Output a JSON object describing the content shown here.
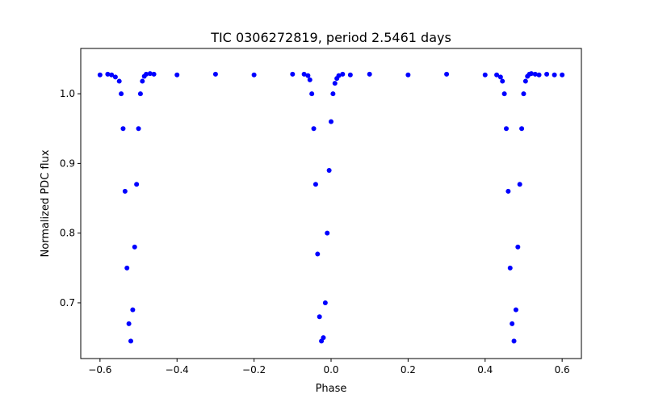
{
  "chart_data": {
    "type": "scatter",
    "title": "TIC 0306272819, period 2.5461 days",
    "xlabel": "Phase",
    "ylabel": "Normalized PDC flux",
    "xlim": [
      -0.65,
      0.65
    ],
    "ylim": [
      0.62,
      1.065
    ],
    "xticks": [
      -0.6,
      -0.4,
      -0.2,
      0.0,
      0.2,
      0.4,
      0.6
    ],
    "xtick_labels": [
      "−0.6",
      "−0.4",
      "−0.2",
      "0.0",
      "0.2",
      "0.4",
      "0.6"
    ],
    "yticks": [
      0.7,
      0.8,
      0.9,
      1.0
    ],
    "ytick_labels": [
      "0.7",
      "0.8",
      "0.9",
      "1.0"
    ],
    "grid": false,
    "legend": "none",
    "series": [
      {
        "color": "#0000ff",
        "marker": "circle",
        "x": [
          -0.6,
          -0.58,
          -0.57,
          -0.56,
          -0.55,
          -0.545,
          -0.54,
          -0.535,
          -0.53,
          -0.525,
          -0.52,
          -0.515,
          -0.51,
          -0.505,
          -0.5,
          -0.495,
          -0.49,
          -0.485,
          -0.48,
          -0.47,
          -0.46,
          -0.4,
          -0.3,
          -0.2,
          -0.1,
          -0.07,
          -0.06,
          -0.055,
          -0.05,
          -0.045,
          -0.04,
          -0.035,
          -0.03,
          -0.025,
          -0.02,
          -0.015,
          -0.01,
          -0.005,
          0.0,
          0.005,
          0.01,
          0.015,
          0.02,
          0.03,
          0.05,
          0.1,
          0.2,
          0.3,
          0.4,
          0.43,
          0.44,
          0.445,
          0.45,
          0.455,
          0.46,
          0.465,
          0.47,
          0.475,
          0.48,
          0.485,
          0.49,
          0.495,
          0.5,
          0.505,
          0.51,
          0.515,
          0.52,
          0.53,
          0.54,
          0.56,
          0.58,
          0.6
        ],
        "y": [
          1.027,
          1.028,
          1.027,
          1.024,
          1.018,
          1.0,
          0.95,
          0.86,
          0.75,
          0.67,
          0.645,
          0.69,
          0.78,
          0.87,
          0.95,
          1.0,
          1.018,
          1.025,
          1.028,
          1.029,
          1.028,
          1.027,
          1.028,
          1.027,
          1.028,
          1.028,
          1.026,
          1.02,
          1.0,
          0.95,
          0.87,
          0.77,
          0.68,
          0.645,
          0.65,
          0.7,
          0.8,
          0.89,
          0.96,
          1.0,
          1.015,
          1.022,
          1.026,
          1.028,
          1.027,
          1.028,
          1.027,
          1.028,
          1.027,
          1.027,
          1.024,
          1.018,
          1.0,
          0.95,
          0.86,
          0.75,
          0.67,
          0.645,
          0.69,
          0.78,
          0.87,
          0.95,
          1.0,
          1.018,
          1.025,
          1.028,
          1.029,
          1.028,
          1.027,
          1.028,
          1.027,
          1.027
        ]
      }
    ]
  }
}
